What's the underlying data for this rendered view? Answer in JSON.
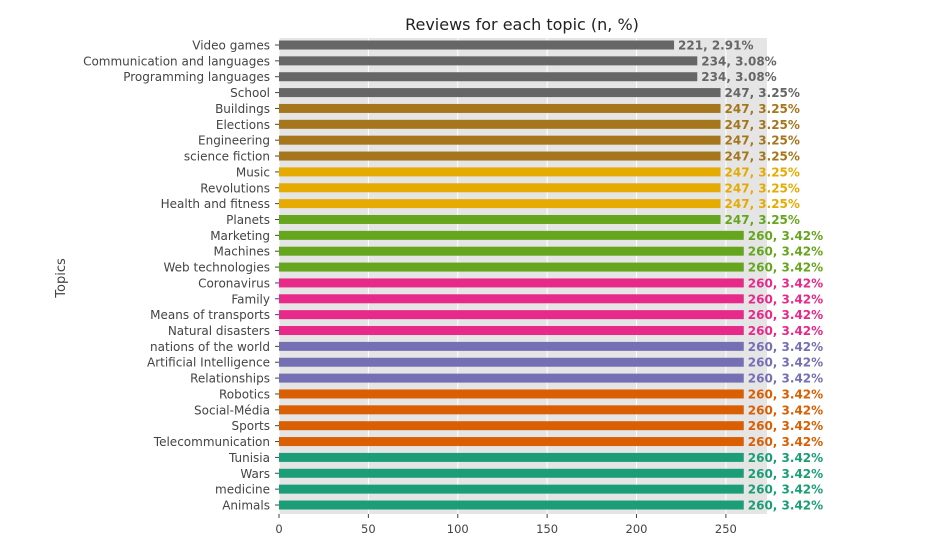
{
  "chart_data": {
    "type": "bar",
    "orientation": "horizontal",
    "title": "Reviews for each topic (n, %)",
    "xlabel": "",
    "ylabel": "Topics",
    "xlim": [
      0,
      273
    ],
    "xticks": [
      0,
      50,
      100,
      150,
      200,
      250
    ],
    "grid": true,
    "categories": [
      "Video games",
      "Communication and languages",
      "Programming languages",
      "School",
      "Buildings",
      "Elections",
      "Engineering",
      "science fiction",
      "Music",
      "Revolutions",
      "Health and fitness",
      "Planets",
      "Marketing",
      "Machines",
      "Web technologies",
      "Coronavirus",
      "Family",
      "Means of transports",
      "Natural disasters",
      "nations of the world",
      "Artificial Intelligence",
      "Relationships",
      "Robotics",
      "Social-Média",
      "Sports",
      "Telecommunication",
      "Tunisia",
      "Wars",
      "medicine",
      "Animals"
    ],
    "values": [
      221,
      234,
      234,
      247,
      247,
      247,
      247,
      247,
      247,
      247,
      247,
      247,
      260,
      260,
      260,
      260,
      260,
      260,
      260,
      260,
      260,
      260,
      260,
      260,
      260,
      260,
      260,
      260,
      260,
      260
    ],
    "percents": [
      "2.91%",
      "3.08%",
      "3.08%",
      "3.25%",
      "3.25%",
      "3.25%",
      "3.25%",
      "3.25%",
      "3.25%",
      "3.25%",
      "3.25%",
      "3.25%",
      "3.42%",
      "3.42%",
      "3.42%",
      "3.42%",
      "3.42%",
      "3.42%",
      "3.42%",
      "3.42%",
      "3.42%",
      "3.42%",
      "3.42%",
      "3.42%",
      "3.42%",
      "3.42%",
      "3.42%",
      "3.42%",
      "3.42%",
      "3.42%"
    ],
    "data_labels": [
      "221, 2.91%",
      "234, 3.08%",
      "234, 3.08%",
      "247, 3.25%",
      "247, 3.25%",
      "247, 3.25%",
      "247, 3.25%",
      "247, 3.25%",
      "247, 3.25%",
      "247, 3.25%",
      "247, 3.25%",
      "247, 3.25%",
      "260, 3.42%",
      "260, 3.42%",
      "260, 3.42%",
      "260, 3.42%",
      "260, 3.42%",
      "260, 3.42%",
      "260, 3.42%",
      "260, 3.42%",
      "260, 3.42%",
      "260, 3.42%",
      "260, 3.42%",
      "260, 3.42%",
      "260, 3.42%",
      "260, 3.42%",
      "260, 3.42%",
      "260, 3.42%",
      "260, 3.42%",
      "260, 3.42%"
    ],
    "colors": [
      "#666666",
      "#666666",
      "#666666",
      "#666666",
      "#a6761d",
      "#a6761d",
      "#a6761d",
      "#a6761d",
      "#e6ab02",
      "#e6ab02",
      "#e6ab02",
      "#66a61e",
      "#66a61e",
      "#66a61e",
      "#66a61e",
      "#e7298a",
      "#e7298a",
      "#e7298a",
      "#e7298a",
      "#7570b3",
      "#7570b3",
      "#7570b3",
      "#d95f02",
      "#d95f02",
      "#d95f02",
      "#d95f02",
      "#1b9e77",
      "#1b9e77",
      "#1b9e77",
      "#1b9e77"
    ],
    "background_color": "#e5e5e5",
    "grid_color": "#ffffff"
  }
}
